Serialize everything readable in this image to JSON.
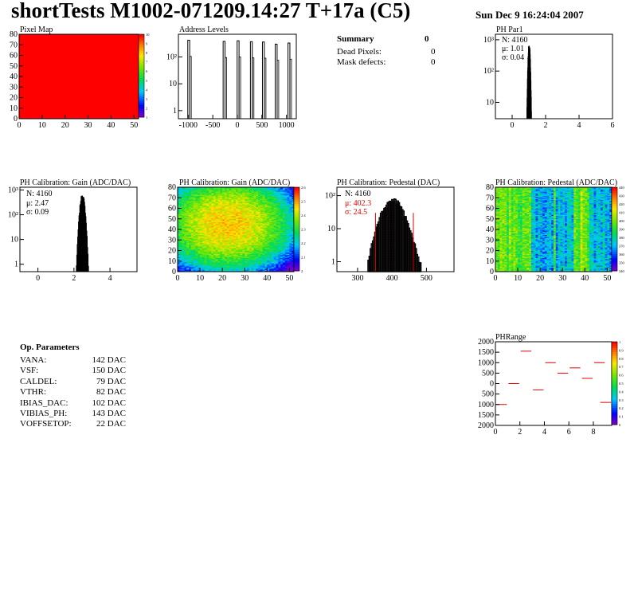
{
  "header": {
    "title": "shortTests M1002-071209.14:27 T+17a (C5)",
    "date": "Sun Dec  9 16:24:04 2007"
  },
  "summary": {
    "title": "Summary",
    "title_value": "0",
    "rows": [
      {
        "label": "Dead Pixels:",
        "value": "0"
      },
      {
        "label": "Mask defects:",
        "value": "0"
      }
    ]
  },
  "op_params": {
    "title": "Op. Parameters",
    "rows": [
      {
        "label": "VANA:",
        "value": "142 DAC"
      },
      {
        "label": "VSF:",
        "value": "150 DAC"
      },
      {
        "label": "CALDEL:",
        "value": "79 DAC"
      },
      {
        "label": "VTHR:",
        "value": "82 DAC"
      },
      {
        "label": "IBIAS_DAC:",
        "value": "102 DAC"
      },
      {
        "label": "VIBIAS_PH:",
        "value": "143 DAC"
      },
      {
        "label": "VOFFSETOP:",
        "value": "22 DAC"
      }
    ]
  },
  "chart_data": [
    {
      "id": "pixel-map",
      "type": "heatmap",
      "title": "Pixel Map",
      "xlim": [
        0,
        52
      ],
      "ylim": [
        0,
        80
      ],
      "xticks": [
        0,
        10,
        20,
        30,
        40,
        50
      ],
      "yticks": [
        0,
        10,
        20,
        30,
        40,
        50,
        60,
        70,
        80
      ],
      "fill_value": 10,
      "fill_color": "#ff0000",
      "palette_labels": [
        "10",
        "9",
        "8",
        "7",
        "6",
        "5",
        "4",
        "3",
        "2",
        "1"
      ]
    },
    {
      "id": "address-levels",
      "type": "bar",
      "title": "Address Levels",
      "log_y": true,
      "xlim": [
        -1200,
        1200
      ],
      "ylim": [
        0.5,
        700
      ],
      "xticks": [
        -1000,
        -500,
        0,
        500,
        1000
      ],
      "xtick_labels": [
        "-1000",
        "-500",
        "0",
        "500",
        "1000"
      ],
      "yticks": [
        1,
        10,
        100
      ],
      "ytick_labels": [
        "1",
        "10",
        "10²"
      ],
      "peaks": [
        {
          "x": -990,
          "y": 420
        },
        {
          "x": -270,
          "y": 380
        },
        {
          "x": 15,
          "y": 400
        },
        {
          "x": 285,
          "y": 370
        },
        {
          "x": 530,
          "y": 360
        },
        {
          "x": 790,
          "y": 300
        },
        {
          "x": 1050,
          "y": 330
        }
      ]
    },
    {
      "id": "ph-par1",
      "type": "bar",
      "title": "PH Par1",
      "log_y": true,
      "xlim": [
        -1,
        6
      ],
      "ylim": [
        3,
        1500
      ],
      "xticks": [
        0,
        2,
        4,
        6
      ],
      "yticks": [
        10,
        100,
        1000
      ],
      "ytick_labels": [
        "10",
        "10²",
        "10³"
      ],
      "stats": {
        "N": "N: 4160",
        "mean": "μ: 1.01",
        "sigma": "σ: 0.04"
      },
      "peak": {
        "mean": 1.01,
        "sigma": 0.04,
        "max": 650
      }
    },
    {
      "id": "ph-gain-hist",
      "type": "bar",
      "title": "PH Calibration: Gain (ADC/DAC)",
      "log_y": true,
      "xlim": [
        -1,
        5.5
      ],
      "ylim": [
        0.5,
        1300
      ],
      "xticks": [
        0,
        2,
        4
      ],
      "yticks": [
        1,
        10,
        100,
        1000
      ],
      "ytick_labels": [
        "1",
        "10",
        "10²",
        "10³"
      ],
      "stats": {
        "N": "N: 4160",
        "mean": "μ: 2.47",
        "sigma": "σ: 0.09"
      },
      "peak": {
        "mean": 2.47,
        "sigma": 0.09,
        "max": 600
      }
    },
    {
      "id": "ph-gain-map",
      "type": "heatmap",
      "title": "PH Calibration: Gain (ADC/DAC)",
      "xlim": [
        0,
        52
      ],
      "ylim": [
        0,
        80
      ],
      "xticks": [
        0,
        10,
        20,
        30,
        40,
        50
      ],
      "yticks": [
        0,
        10,
        20,
        30,
        40,
        50,
        60,
        70,
        80
      ],
      "zlim": [
        2.0,
        2.7
      ],
      "palette_labels": [
        "2.6",
        "2.5",
        "2.4",
        "2.3",
        "2.2",
        "2.1",
        "2"
      ]
    },
    {
      "id": "ph-pedestal-hist",
      "type": "bar",
      "title": "PH Calibration: Pedestal (DAC)",
      "log_y": true,
      "xlim": [
        240,
        580
      ],
      "ylim": [
        0.5,
        180
      ],
      "xticks": [
        300,
        400,
        500
      ],
      "yticks": [
        1,
        10,
        100
      ],
      "ytick_labels": [
        "1",
        "10",
        "10²"
      ],
      "stats": {
        "N": "N: 4160",
        "mean": "μ: 402.3",
        "sigma": "σ: 24.5"
      },
      "peak": {
        "mean": 402.3,
        "sigma": 24.5,
        "max": 70
      },
      "cut_lines": [
        352,
        462
      ]
    },
    {
      "id": "ph-pedestal-map",
      "type": "heatmap",
      "title": "PH Calibration: Pedestal (ADC/DAC)",
      "xlim": [
        0,
        52
      ],
      "ylim": [
        0,
        80
      ],
      "xticks": [
        0,
        10,
        20,
        30,
        40,
        50
      ],
      "yticks": [
        0,
        10,
        20,
        30,
        40,
        50,
        60,
        70,
        80
      ],
      "zlim": [
        340,
        440
      ],
      "palette_labels": [
        "440",
        "430",
        "420",
        "410",
        "400",
        "390",
        "380",
        "370",
        "360",
        "350",
        "340"
      ]
    },
    {
      "id": "ph-range",
      "type": "scatter",
      "title": "PHRange",
      "xlim": [
        0,
        9.5
      ],
      "ylim": [
        -2000,
        2000
      ],
      "xticks": [
        0,
        2,
        4,
        6,
        8
      ],
      "yticks": [
        2000,
        1500,
        1000,
        500,
        0,
        -500,
        -1000,
        -1500,
        -2000
      ],
      "ytick_labels": [
        "2000",
        "1500",
        "1000",
        "500",
        "0",
        "500",
        "1000",
        "1500",
        "2000"
      ],
      "segments": [
        {
          "x": 0,
          "y": -1000
        },
        {
          "x": 1,
          "y": 0
        },
        {
          "x": 2,
          "y": 1550
        },
        {
          "x": 3,
          "y": -300
        },
        {
          "x": 4,
          "y": 1000
        },
        {
          "x": 5,
          "y": 500
        },
        {
          "x": 6,
          "y": 750
        },
        {
          "x": 7,
          "y": 250
        },
        {
          "x": 8,
          "y": 1000
        },
        {
          "x": 8.5,
          "y": -900
        }
      ],
      "palette_labels": [
        "1",
        "0.9",
        "0.8",
        "0.7",
        "0.6",
        "0.5",
        "0.4",
        "0.3",
        "0.2",
        "0.1",
        "0"
      ]
    }
  ]
}
